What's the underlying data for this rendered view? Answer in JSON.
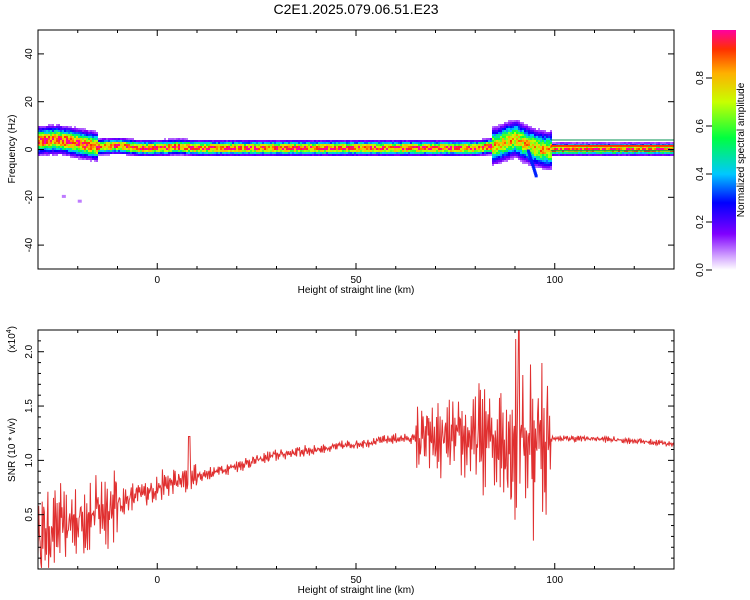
{
  "title": "C2E1.2025.079.06.51.E23",
  "chart_data": [
    {
      "type": "heatmap",
      "xlabel": "Height of straight line (km)",
      "ylabel": "Frequency (Hz)",
      "xlim": [
        -30,
        130
      ],
      "ylim": [
        -50,
        50
      ],
      "xticks": [
        0,
        50,
        100
      ],
      "yticks": [
        -40,
        -20,
        0,
        20,
        40
      ],
      "colorbar": {
        "label": "Normalized spectral amplitude",
        "range": [
          0.0,
          1.0
        ],
        "ticks": [
          "0.0",
          "0.2",
          "0.4",
          "0.6",
          "0.8"
        ],
        "tick_values": [
          0.0,
          0.2,
          0.4,
          0.6,
          0.8
        ]
      },
      "ridge": {
        "x": [
          -30,
          -25,
          -20,
          -15,
          -10,
          -5,
          0,
          5,
          10,
          20,
          40,
          60,
          80,
          85,
          88,
          90,
          92,
          95,
          98,
          100,
          130
        ],
        "y": [
          4,
          4.5,
          3,
          1.5,
          2,
          1,
          1,
          1.5,
          1,
          1,
          1,
          1,
          1,
          2,
          4,
          5,
          3,
          1,
          0,
          0.5,
          0.5
        ]
      }
    },
    {
      "type": "line",
      "xlabel": "Height of straight line (km)",
      "ylabel": "SNR (10 * v/v)",
      "y_multiplier": "(x10^4)",
      "y_multiplier_base": "(x10",
      "y_multiplier_exp": "4",
      "y_multiplier_close": ")",
      "xlim": [
        -30,
        130
      ],
      "ylim": [
        0,
        2.2
      ],
      "xticks": [
        0,
        50,
        100
      ],
      "yticks": [
        0.5,
        1.0,
        1.5,
        2.0
      ],
      "series": [
        {
          "color": "#e03030",
          "envelope_x": [
            -30,
            -20,
            -10,
            0,
            10,
            20,
            30,
            40,
            50,
            60,
            65,
            70,
            80,
            85,
            90,
            95,
            100,
            110,
            120,
            130
          ],
          "envelope_y": [
            0.3,
            0.45,
            0.6,
            0.75,
            0.85,
            0.95,
            1.05,
            1.1,
            1.15,
            1.2,
            1.2,
            1.18,
            1.2,
            1.2,
            1.2,
            1.2,
            1.2,
            1.2,
            1.18,
            1.15
          ]
        }
      ]
    }
  ]
}
